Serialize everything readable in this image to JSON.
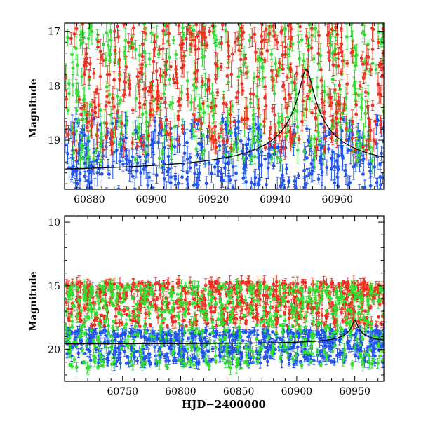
{
  "chart_data": [
    {
      "type": "scatter",
      "title": "",
      "xlabel": "",
      "ylabel": "Magnitude",
      "xlim": [
        60872,
        60975
      ],
      "ylim": [
        19.9,
        16.85
      ],
      "y_inverted": true,
      "x_ticks": [
        "60880",
        "60900",
        "60920",
        "60940",
        "60960"
      ],
      "y_ticks": [
        "17",
        "18",
        "19"
      ],
      "x_tick_values": [
        60880,
        60900,
        60920,
        60940,
        60960
      ],
      "y_tick_values": [
        17,
        18,
        19
      ],
      "grid": false,
      "legend": "none",
      "series": [
        {
          "color": "#2255ee",
          "mag_range": [
            18.6,
            19.95
          ],
          "seed": 11
        },
        {
          "color": "#33dd33",
          "mag_range": [
            16.85,
            19.4
          ],
          "seed": 23
        },
        {
          "color": "#ee3322",
          "mag_range": [
            16.85,
            19.2
          ],
          "seed": 37
        }
      ],
      "model_curve": {
        "baseline": 19.65,
        "peak_time": 60950,
        "peak_mag": 17.7,
        "width": 4.5
      }
    },
    {
      "type": "scatter",
      "title": "",
      "xlabel": "HJD−2400000",
      "ylabel": "Magnitude",
      "xlim": [
        60700,
        60975
      ],
      "ylim": [
        22.5,
        9.5
      ],
      "y_inverted": true,
      "x_ticks": [
        "60750",
        "60800",
        "60850",
        "60900",
        "60950"
      ],
      "y_ticks": [
        "10",
        "15",
        "20"
      ],
      "x_tick_values": [
        60750,
        60800,
        60850,
        60900,
        60950
      ],
      "y_tick_values": [
        10,
        15,
        20
      ],
      "grid": false,
      "legend": "none",
      "series": [
        {
          "color": "#ee3322",
          "mag_range": [
            14.7,
            18.2
          ],
          "seed": 41
        },
        {
          "color": "#2255ee",
          "mag_range": [
            18.5,
            21.2
          ],
          "seed": 53
        },
        {
          "color": "#33dd33",
          "mag_range": [
            15.0,
            21.5
          ],
          "seed": 67
        }
      ],
      "model_curve": {
        "baseline": 19.6,
        "peak_time": 60950,
        "peak_mag": 17.7,
        "width": 4.5
      }
    }
  ]
}
